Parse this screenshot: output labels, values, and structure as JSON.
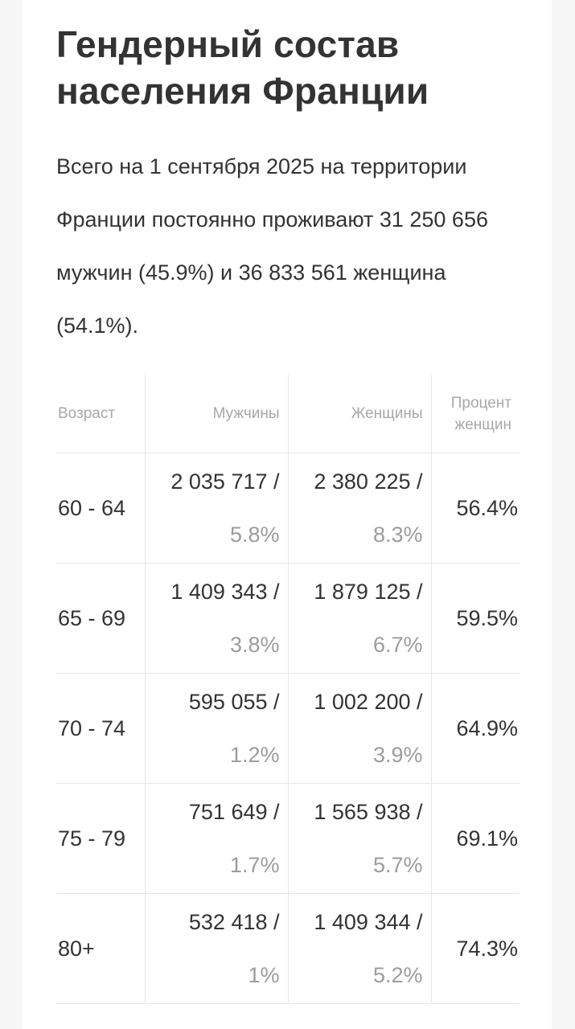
{
  "title": "Гендерный состав населения Франции",
  "intro": "Всего на 1 сентября 2025 на территории Франции постоянно проживают 31 250 656 мужчин (45.9%) и 36 833 561 женщина (54.1%).",
  "table": {
    "headers": {
      "age": "Возраст",
      "men": "Мужчины",
      "women": "Женщины",
      "pct": "Процент женщин"
    },
    "rows": [
      {
        "age": "60 - 64",
        "men_abs": "2 035 717 /",
        "men_rel": "5.8%",
        "women_abs": "2 380 225 /",
        "women_rel": "8.3%",
        "pct": "56.4%"
      },
      {
        "age": "65 - 69",
        "men_abs": "1 409 343 /",
        "men_rel": "3.8%",
        "women_abs": "1 879 125 /",
        "women_rel": "6.7%",
        "pct": "59.5%"
      },
      {
        "age": "70 - 74",
        "men_abs": "595 055 /",
        "men_rel": "1.2%",
        "women_abs": "1 002 200 /",
        "women_rel": "3.9%",
        "pct": "64.9%"
      },
      {
        "age": "75 - 79",
        "men_abs": "751 649 /",
        "men_rel": "1.7%",
        "women_abs": "1 565 938 /",
        "women_rel": "5.7%",
        "pct": "69.1%"
      },
      {
        "age": "80+",
        "men_abs": "532 418 /",
        "men_rel": "1%",
        "women_abs": "1 409 344 /",
        "women_rel": "5.2%",
        "pct": "74.3%"
      }
    ]
  }
}
